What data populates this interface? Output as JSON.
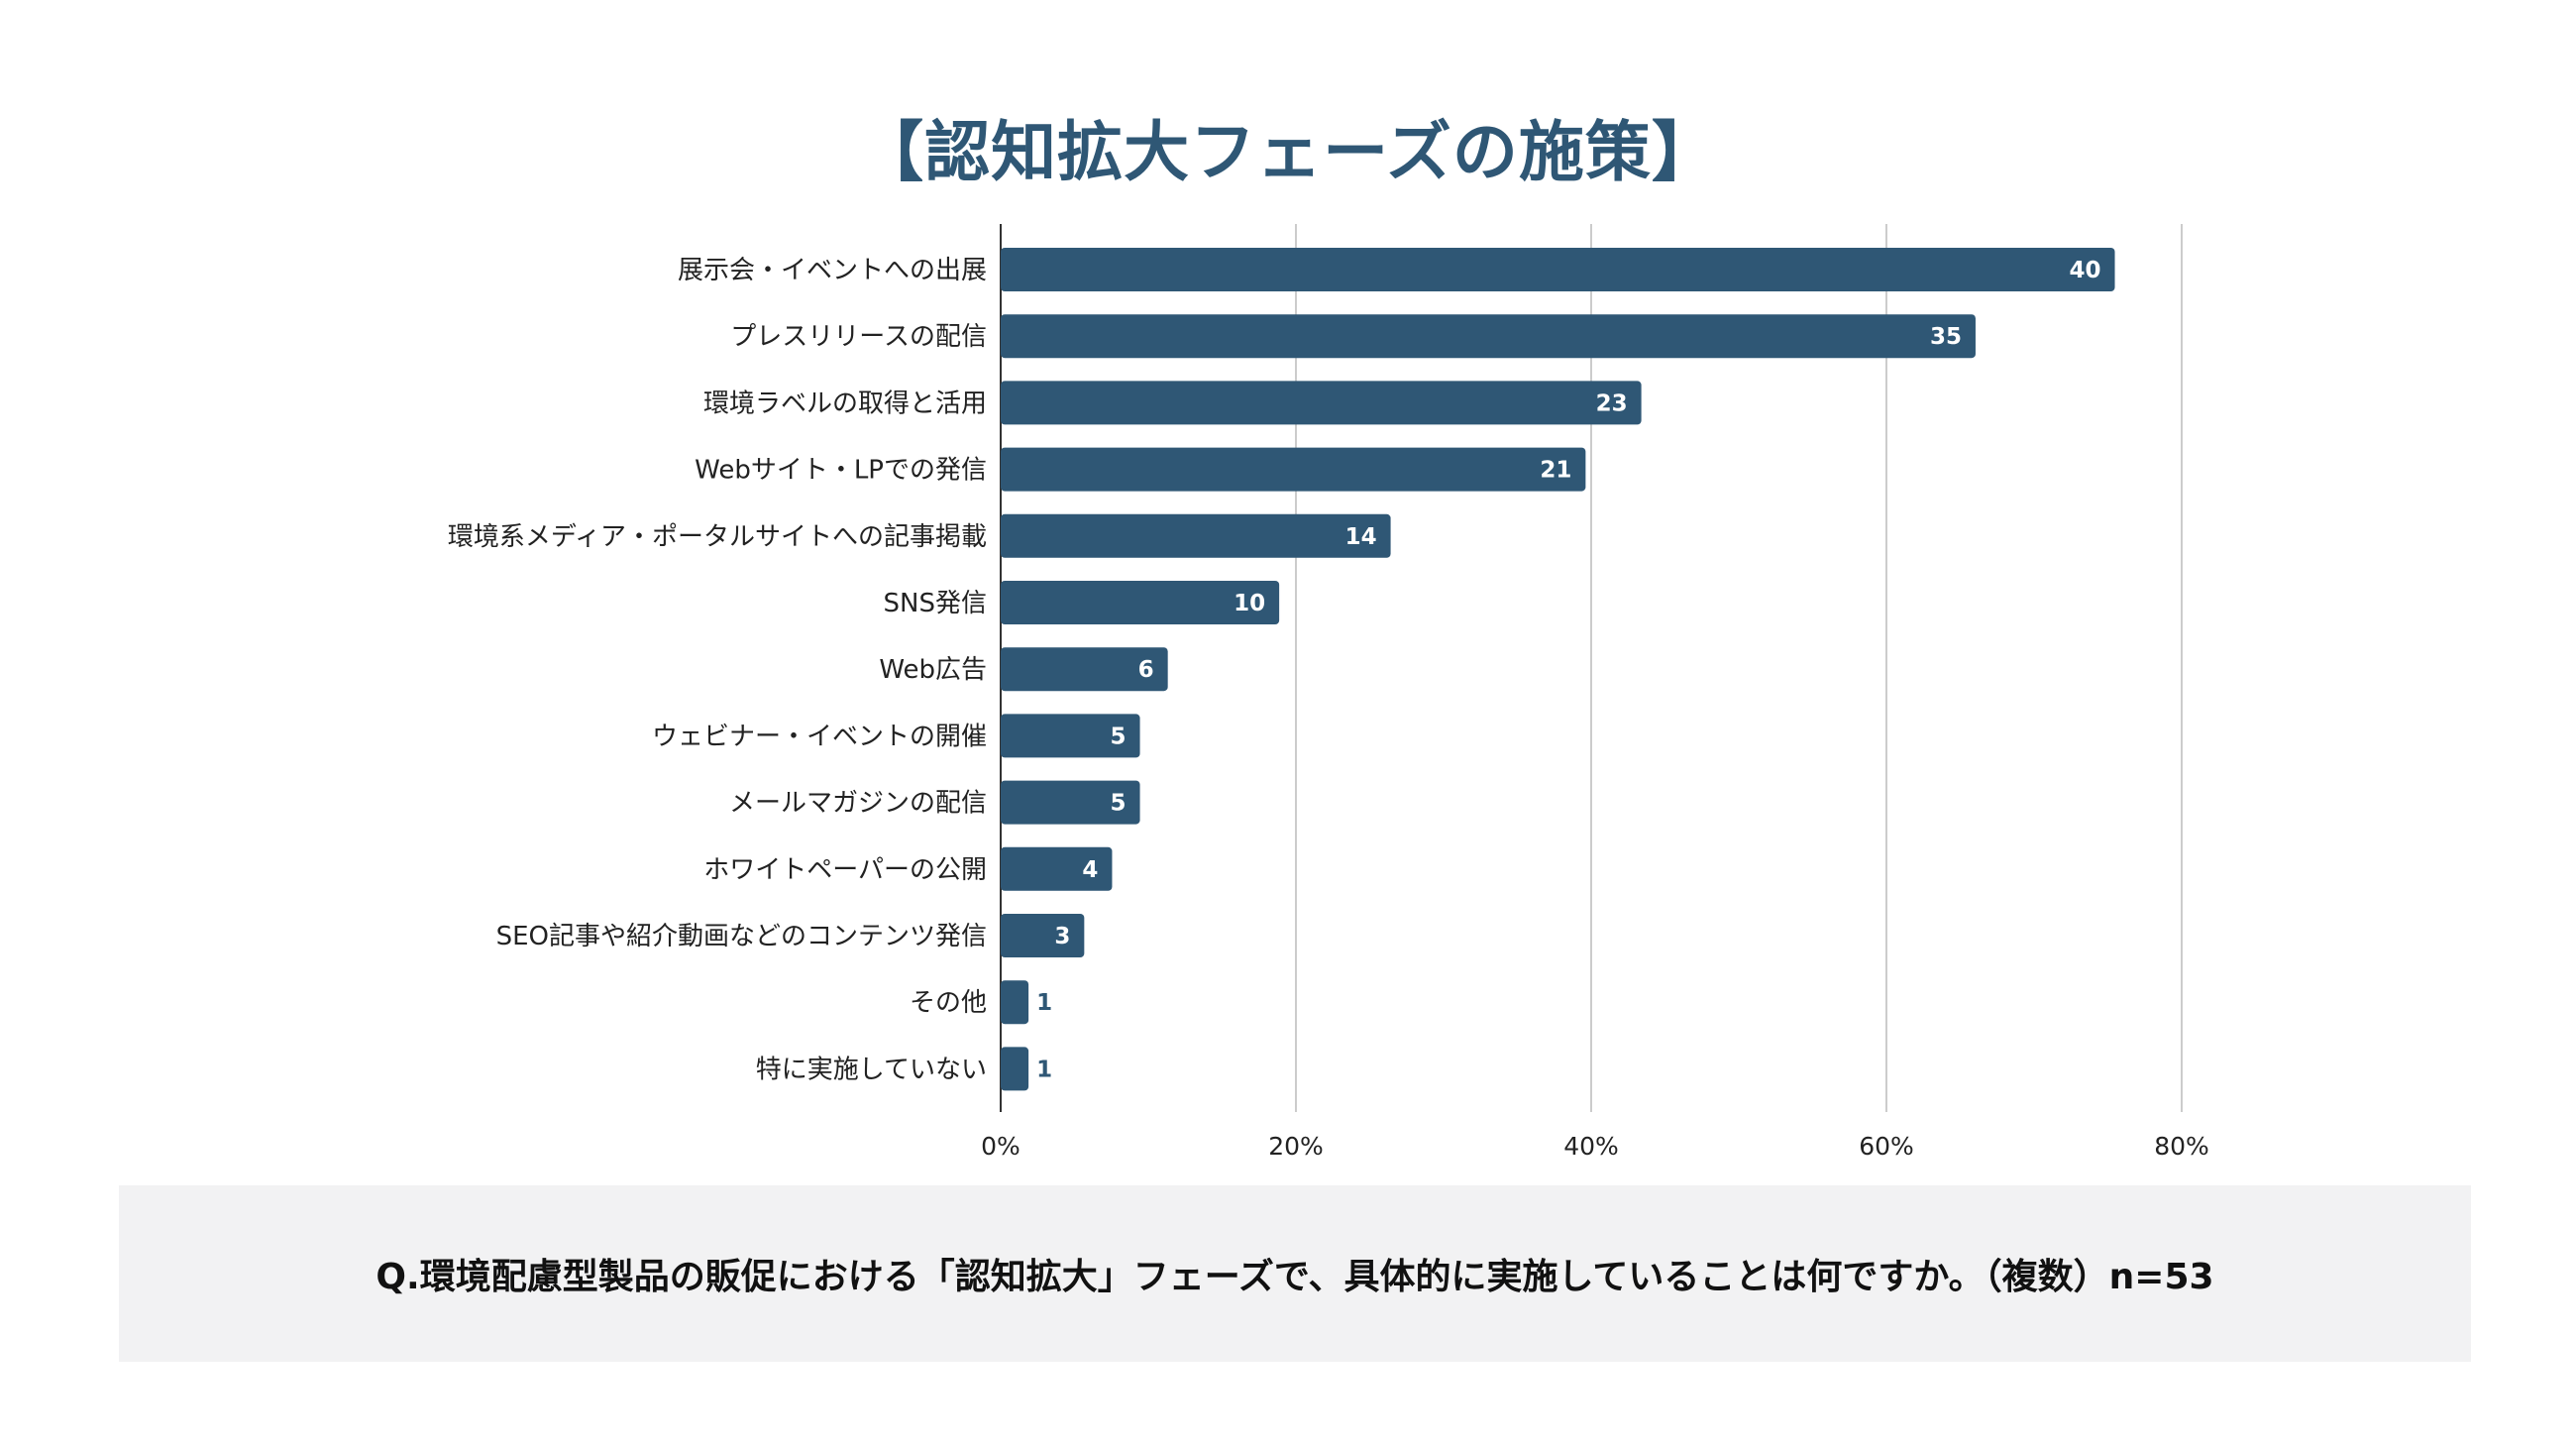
{
  "chart_data": {
    "type": "bar",
    "orientation": "horizontal",
    "title": "【認知拡大フェーズの施策】",
    "categories": [
      "展示会・イベントへの出展",
      "プレスリリースの配信",
      "環境ラベルの取得と活用",
      "Webサイト・LPでの発信",
      "環境系メディア・ポータルサイトへの記事掲載",
      "SNS発信",
      "Web広告",
      "ウェビナー・イベントの開催",
      "メールマガジンの配信",
      "ホワイトペーパーの公開",
      "SEO記事や紹介動画などのコンテンツ発信",
      "その他",
      "特に実施していない"
    ],
    "values": [
      40,
      35,
      23,
      21,
      14,
      10,
      6,
      5,
      5,
      4,
      3,
      1,
      1
    ],
    "n": 53,
    "xlim": [
      0,
      0.8
    ],
    "x_ticks": [
      "0%",
      "20%",
      "40%",
      "60%",
      "80%"
    ],
    "x_tick_values": [
      0,
      0.2,
      0.4,
      0.6,
      0.8
    ],
    "grid": "vertical",
    "bar_color": "#2f5775",
    "label_inside_color": "#ffffff",
    "label_outside_color": "#2f5775",
    "xlabel": "",
    "ylabel": ""
  },
  "footer": {
    "question": "Q.環境配慮型製品の販促における「認知拡大」フェーズで、具体的に実施していることは何ですか。（複数）n=53"
  }
}
